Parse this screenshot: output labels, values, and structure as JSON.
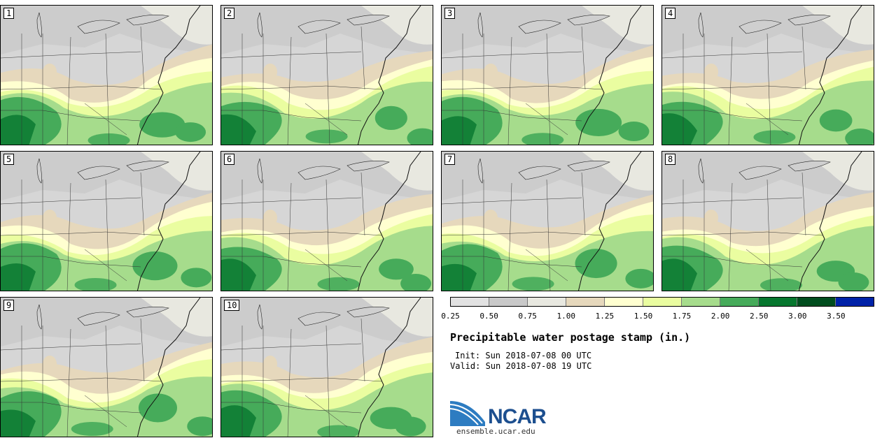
{
  "panels": [
    {
      "label": "1"
    },
    {
      "label": "2"
    },
    {
      "label": "3"
    },
    {
      "label": "4"
    },
    {
      "label": "5"
    },
    {
      "label": "6"
    },
    {
      "label": "7"
    },
    {
      "label": "8"
    },
    {
      "label": "9"
    },
    {
      "label": "10"
    }
  ],
  "colorbar": {
    "colors": [
      "#e2e2e2",
      "#c9c9c9",
      "#e8e8e0",
      "#e6d8bc",
      "#ffffd0",
      "#eafda0",
      "#a6dc8c",
      "#46ab5a",
      "#06772e",
      "#004d1e",
      "#0022a8"
    ],
    "ticks": [
      "0.25",
      "0.50",
      "0.75",
      "1.00",
      "1.25",
      "1.50",
      "1.75",
      "2.00",
      "2.50",
      "3.00",
      "3.50"
    ]
  },
  "title": "Precipitable water postage stamp (in.)",
  "init": "Init: Sun 2018-07-08 00 UTC",
  "valid": "Valid: Sun 2018-07-08 19 UTC",
  "logo": {
    "text": "NCAR",
    "url": "ensemble.ucar.edu",
    "brand_color": "#1d4f8f",
    "swoosh_color": "#2d7cc1"
  }
}
